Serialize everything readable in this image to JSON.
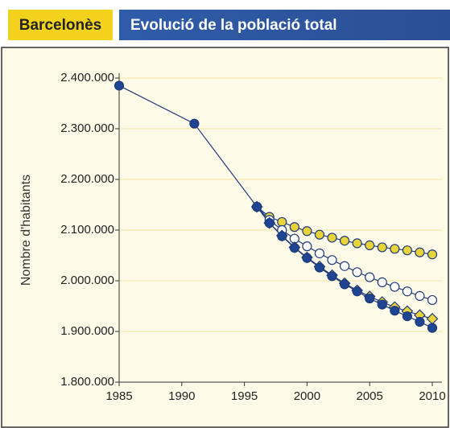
{
  "header": {
    "region": "Barcelonès",
    "title": "Evolució de la població total"
  },
  "chart_data": {
    "type": "line",
    "ylabel": "Nombre d'habitants",
    "xlim": [
      1985,
      2010
    ],
    "xticks": [
      1985,
      1990,
      1995,
      2000,
      2005,
      2010
    ],
    "ylim": [
      1800000,
      2400000
    ],
    "yticks": [
      {
        "value": 1800000,
        "label": "1.800.000"
      },
      {
        "value": 1900000,
        "label": "1.900.000"
      },
      {
        "value": 2000000,
        "label": "2.000.000"
      },
      {
        "value": 2100000,
        "label": "2.100.000"
      },
      {
        "value": 2200000,
        "label": "2.200.000"
      },
      {
        "value": 2300000,
        "label": "2.300.000"
      },
      {
        "value": 2400000,
        "label": "2.400.000"
      }
    ],
    "grid": true,
    "series": [
      {
        "color": "#e8d43a",
        "marker": "circle",
        "x": [
          1996,
          1997,
          1998,
          1999,
          2000,
          2001,
          2002,
          2003,
          2004,
          2005,
          2006,
          2007,
          2008,
          2009,
          2010
        ],
        "values": [
          2146000,
          2126000,
          2116000,
          2106000,
          2098000,
          2091000,
          2085000,
          2079000,
          2074000,
          2070000,
          2066000,
          2063000,
          2060000,
          2056000,
          2052000
        ]
      },
      {
        "color": "#ffffff",
        "marker": "circle",
        "x": [
          1996,
          1997,
          1998,
          1999,
          2000,
          2001,
          2002,
          2003,
          2004,
          2005,
          2006,
          2007,
          2008,
          2009,
          2010
        ],
        "values": [
          2146000,
          2120000,
          2100000,
          2083000,
          2068000,
          2054000,
          2041000,
          2029000,
          2017000,
          2007000,
          1997000,
          1988000,
          1979000,
          1970000,
          1962000
        ]
      },
      {
        "color": "#e8d43a",
        "marker": "diamond",
        "x": [
          1996,
          1997,
          1998,
          1999,
          2000,
          2001,
          2002,
          2003,
          2004,
          2005,
          2006,
          2007,
          2008,
          2009,
          2010
        ],
        "values": [
          2146000,
          2114000,
          2089000,
          2066000,
          2046000,
          2028000,
          2011000,
          1995000,
          1981000,
          1969000,
          1958000,
          1948000,
          1940000,
          1932000,
          1925000
        ]
      },
      {
        "color": "#1f4592",
        "marker": "circle",
        "x": [
          1985,
          1991,
          1996,
          1997,
          1998,
          1999,
          2000,
          2001,
          2002,
          2003,
          2004,
          2005,
          2006,
          2007,
          2008,
          2009,
          2010
        ],
        "values": [
          2385000,
          2310000,
          2146000,
          2114000,
          2088000,
          2065000,
          2045000,
          2026000,
          2009000,
          1993000,
          1979000,
          1965000,
          1953000,
          1941000,
          1930000,
          1919000,
          1907000
        ]
      }
    ]
  }
}
